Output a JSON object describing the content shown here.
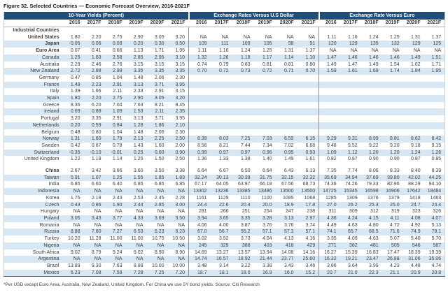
{
  "title": "Figure 32. Selected Countries — Economic Forecast Overview, 2016-2021F",
  "footnote": "*Per USD except Euro Area, Australia, New Zealand, United Kingdom. For China we use 5Y bond yields. Source: Citi Research",
  "colors": {
    "header_bg": "#1F4E79",
    "stripe": "#D7E7F3",
    "text": "#404040"
  },
  "table": {
    "groups": [
      {
        "label": "10-Year Yields (Percent)"
      },
      {
        "label": "Exchange Rates Versus U.S Dollar"
      },
      {
        "label": "Exchange Rate Versus Euro"
      }
    ],
    "years": [
      "2016",
      "2017F",
      "2018F",
      "2019F",
      "2020F",
      "2021F"
    ],
    "rows": [
      {
        "type": "section",
        "name": "Industrial Countries"
      },
      {
        "type": "data",
        "name": "United States",
        "bold": true,
        "yields": [
          "1.80",
          "2.20",
          "2.75",
          "2.90",
          "3.05",
          "3.20"
        ],
        "usd": [
          "NA",
          "NA",
          "NA",
          "NA",
          "NA",
          "NA"
        ],
        "eur": [
          "1.11",
          "1.16",
          "1.24",
          "1.25",
          "1.31",
          "1.37"
        ]
      },
      {
        "type": "data",
        "name": "Japan",
        "bold": true,
        "yields": [
          "-0.05",
          "0.06",
          "0.09",
          "0.20",
          "0.30",
          "0.50"
        ],
        "usd": [
          "109",
          "111",
          "109",
          "105",
          "98",
          "91"
        ],
        "eur": [
          "120",
          "129",
          "135",
          "132",
          "129",
          "125"
        ]
      },
      {
        "type": "data",
        "name": "Euro Area",
        "bold": true,
        "yields": [
          "0.07",
          "0.41",
          "0.66",
          "1.13",
          "1.71",
          "1.95"
        ],
        "usd": [
          "1.11",
          "1.16",
          "1.24",
          "1.25",
          "1.31",
          "1.37"
        ],
        "eur": [
          "NA",
          "NA",
          "NA",
          "NA",
          "NA",
          "NA"
        ]
      },
      {
        "type": "data",
        "name": "Canada",
        "yields": [
          "1.25",
          "1.83",
          "2.58",
          "2.85",
          "2.95",
          "3.10"
        ],
        "usd": [
          "1.32",
          "1.26",
          "1.18",
          "1.17",
          "1.14",
          "1.10"
        ],
        "eur": [
          "1.47",
          "1.46",
          "1.46",
          "1.46",
          "1.49",
          "1.51"
        ]
      },
      {
        "type": "data",
        "name": "Australia",
        "yields": [
          "2.29",
          "2.46",
          "2.76",
          "3.15",
          "3.15",
          "3.15"
        ],
        "usd": [
          "0.74",
          "0.79",
          "0.83",
          "0.81",
          "0.81",
          "0.80"
        ],
        "eur": [
          "1.49",
          "1.47",
          "1.49",
          "1.54",
          "1.62",
          "1.71"
        ]
      },
      {
        "type": "data",
        "name": "New Zealand",
        "yields": [
          "2.72",
          "2.88",
          "2.99",
          "3.35",
          "3.35",
          "3.35"
        ],
        "usd": [
          "0.70",
          "0.72",
          "0.73",
          "0.72",
          "0.71",
          "0.70"
        ],
        "eur": [
          "1.59",
          "1.61",
          "1.69",
          "1.74",
          "1.84",
          "1.95"
        ]
      },
      {
        "type": "data",
        "name": "Germany",
        "yields": [
          "0.47",
          "0.85",
          "1.04",
          "1.48",
          "2.06",
          "2.30"
        ],
        "usd": [
          "",
          "",
          "",
          "",
          "",
          ""
        ],
        "eur": [
          "",
          "",
          "",
          "",
          "",
          ""
        ]
      },
      {
        "type": "data",
        "name": "France",
        "yields": [
          "1.49",
          "2.23",
          "2.91",
          "3.13",
          "3.71",
          "3.95"
        ],
        "usd": [
          "",
          "",
          "",
          "",
          "",
          ""
        ],
        "eur": [
          "",
          "",
          "",
          "",
          "",
          ""
        ]
      },
      {
        "type": "data",
        "name": "Italy",
        "yields": [
          "1.39",
          "1.66",
          "2.11",
          "2.33",
          "2.91",
          "3.15"
        ],
        "usd": [
          "",
          "",
          "",
          "",
          "",
          ""
        ],
        "eur": [
          "",
          "",
          "",
          "",
          "",
          ""
        ]
      },
      {
        "type": "data",
        "name": "Spain",
        "yields": [
          "1.80",
          "2.20",
          "2.75",
          "2.90",
          "3.05",
          "3.20"
        ],
        "usd": [
          "",
          "",
          "",
          "",
          "",
          ""
        ],
        "eur": [
          "",
          "",
          "",
          "",
          "",
          ""
        ]
      },
      {
        "type": "data",
        "name": "Greece",
        "yields": [
          "8.36",
          "6.20",
          "7.04",
          "7.63",
          "8.21",
          "8.45"
        ],
        "usd": [
          "",
          "",
          "",
          "",
          "",
          ""
        ],
        "eur": [
          "",
          "",
          "",
          "",
          "",
          ""
        ]
      },
      {
        "type": "data",
        "name": "Ireland",
        "yields": [
          "0.69",
          "0.88",
          "1.09",
          "1.53",
          "2.11",
          "2.35"
        ],
        "usd": [
          "",
          "",
          "",
          "",
          "",
          ""
        ],
        "eur": [
          "",
          "",
          "",
          "",
          "",
          ""
        ]
      },
      {
        "type": "data",
        "name": "Portugal",
        "yields": [
          "3.20",
          "3.35",
          "2.91",
          "3.13",
          "3.71",
          "3.95"
        ],
        "usd": [
          "",
          "",
          "",
          "",
          "",
          ""
        ],
        "eur": [
          "",
          "",
          "",
          "",
          "",
          ""
        ]
      },
      {
        "type": "data",
        "name": "Netherlands",
        "yields": [
          "0.20",
          "0.59",
          "0.84",
          "1.28",
          "1.86",
          "2.10"
        ],
        "usd": [
          "",
          "",
          "",
          "",
          "",
          ""
        ],
        "eur": [
          "",
          "",
          "",
          "",
          "",
          ""
        ]
      },
      {
        "type": "data",
        "name": "Belgium",
        "yields": [
          "0.48",
          "0.80",
          "1.04",
          "1.48",
          "2.06",
          "2.30"
        ],
        "usd": [
          "",
          "",
          "",
          "",
          "",
          ""
        ],
        "eur": [
          "",
          "",
          "",
          "",
          "",
          ""
        ]
      },
      {
        "type": "data",
        "name": "Norway",
        "yields": [
          "1.31",
          "1.60",
          "1.79",
          "2.13",
          "2.25",
          "2.50"
        ],
        "usd": [
          "8.39",
          "8.03",
          "7.25",
          "7.03",
          "6.59",
          "6.15"
        ],
        "eur": [
          "9.29",
          "9.31",
          "8.99",
          "8.81",
          "8.62",
          "8.42"
        ]
      },
      {
        "type": "data",
        "name": "Sweden",
        "yields": [
          "0.42",
          "0.67",
          "0.78",
          "1.43",
          "1.60",
          "2.00"
        ],
        "usd": [
          "8.56",
          "8.21",
          "7.44",
          "7.34",
          "7.02",
          "6.68"
        ],
        "eur": [
          "9.48",
          "9.52",
          "9.22",
          "9.20",
          "9.18",
          "9.15"
        ]
      },
      {
        "type": "data",
        "name": "Switzerland",
        "yields": [
          "-0.35",
          "-0.10",
          "-0.01",
          "0.25",
          "0.60",
          "0.90"
        ],
        "usd": [
          "0.99",
          "0.97",
          "0.97",
          "0.96",
          "0.95",
          "0.93"
        ],
        "eur": [
          "1.09",
          "1.12",
          "1.20",
          "1.20",
          "1.24",
          "1.28"
        ]
      },
      {
        "type": "data",
        "name": "United Kingdom",
        "yields": [
          "1.22",
          "1.19",
          "1.14",
          "1.25",
          "1.50",
          "2.50"
        ],
        "usd": [
          "1.36",
          "1.33",
          "1.38",
          "1.40",
          "1.49",
          "1.61"
        ],
        "eur": [
          "0.82",
          "0.87",
          "0.90",
          "0.90",
          "0.87",
          "0.85"
        ]
      },
      {
        "type": "spacer"
      },
      {
        "type": "data",
        "name": "China",
        "bold": true,
        "yields": [
          "2.67",
          "3.42",
          "3.66",
          "3.60",
          "3.50",
          "3.38"
        ],
        "usd": [
          "6.64",
          "6.67",
          "6.50",
          "6.64",
          "6.43",
          "6.13"
        ],
        "eur": [
          "7.35",
          "7.74",
          "8.06",
          "8.33",
          "8.40",
          "8.39"
        ]
      },
      {
        "type": "data",
        "name": "Taiwan",
        "yields": [
          "0.91",
          "1.07",
          "1.25",
          "1.55",
          "1.85",
          "1.83"
        ],
        "usd": [
          "32.24",
          "30.13",
          "30.39",
          "31.75",
          "32.15",
          "32.32"
        ],
        "eur": [
          "35.69",
          "34.94",
          "37.69",
          "39.80",
          "42.02",
          "44.25"
        ]
      },
      {
        "type": "data",
        "name": "India",
        "yields": [
          "6.85",
          "6.60",
          "6.40",
          "6.85",
          "6.85",
          "6.85"
        ],
        "usd": [
          "67.17",
          "64.05",
          "63.97",
          "66.18",
          "67.56",
          "68.73"
        ],
        "eur": [
          "74.36",
          "74.26",
          "79.33",
          "82.96",
          "88.29",
          "94.10"
        ]
      },
      {
        "type": "data",
        "name": "Indonesia",
        "yields": [
          "NA",
          "NA",
          "NA",
          "NA",
          "NA",
          "NA"
        ],
        "usd": [
          "13302",
          "13236",
          "13385",
          "13486",
          "13500",
          "13500"
        ],
        "eur": [
          "14725",
          "15345",
          "16598",
          "16906",
          "17642",
          "18484"
        ]
      },
      {
        "type": "data",
        "name": "Korea",
        "yields": [
          "1.75",
          "2.19",
          "2.43",
          "2.53",
          "2.45",
          "2.28"
        ],
        "usd": [
          "1161",
          "1129",
          "1110",
          "1100",
          "1085",
          "1068"
        ],
        "eur": [
          "1285",
          "1309",
          "1376",
          "1379",
          "1418",
          "1463"
        ]
      },
      {
        "type": "data",
        "name": "Czech",
        "yields": [
          "0.43",
          "0.86",
          "1.90",
          "2.44",
          "2.85",
          "3.00"
        ],
        "usd": [
          "24.4",
          "22.6",
          "20.4",
          "20.0",
          "18.9",
          "17.8"
        ],
        "eur": [
          "27.0",
          "26.2",
          "25.3",
          "25.0",
          "24.7",
          "24.4"
        ]
      },
      {
        "type": "data",
        "name": "Hungary",
        "yields": [
          "NA",
          "NA",
          "NA",
          "NA",
          "NA",
          "NA"
        ],
        "usd": [
          "281",
          "266",
          "251",
          "254",
          "247",
          "238"
        ],
        "eur": [
          "311",
          "309",
          "312",
          "319",
          "323",
          "326"
        ]
      },
      {
        "type": "data",
        "name": "Poland",
        "yields": [
          "3.05",
          "3.43",
          "3.77",
          "4.33",
          "3.69",
          "3.50"
        ],
        "usd": [
          "3.94",
          "3.65",
          "3.35",
          "3.28",
          "3.13",
          "2.97"
        ],
        "eur": [
          "4.36",
          "4.24",
          "4.15",
          "4.11",
          "4.08",
          "4.07"
        ]
      },
      {
        "type": "data",
        "name": "Romania",
        "yields": [
          "NA",
          "NA",
          "NA",
          "NA",
          "NA",
          "NA"
        ],
        "usd": [
          "4.06",
          "4.00",
          "3.87",
          "3.76",
          "3.76",
          "3.74"
        ],
        "eur": [
          "4.49",
          "4.63",
          "4.80",
          "4.72",
          "4.92",
          "5.13"
        ]
      },
      {
        "type": "data",
        "name": "Russia",
        "yields": [
          "8.88",
          "7.80",
          "7.27",
          "6.53",
          "6.23",
          "6.23"
        ],
        "usd": [
          "67.0",
          "56.7",
          "55.2",
          "57.1",
          "57.3",
          "57.1"
        ],
        "eur": [
          "74.1",
          "65.7",
          "68.5",
          "71.6",
          "74.9",
          "78.1"
        ]
      },
      {
        "type": "data",
        "name": "Turkey",
        "yields": [
          "10.20",
          "11.28",
          "11.00",
          "11.00",
          "10.75",
          "10.50"
        ],
        "usd": [
          "3.02",
          "3.52",
          "3.73",
          "4.04",
          "4.13",
          "4.16"
        ],
        "eur": [
          "3.35",
          "4.09",
          "4.63",
          "5.07",
          "5.40",
          "5.70"
        ]
      },
      {
        "type": "data",
        "name": "Nigeria",
        "yields": [
          "NA",
          "NA",
          "NA",
          "NA",
          "NA",
          "NA"
        ],
        "usd": [
          "245",
          "329",
          "388",
          "403",
          "418",
          "429"
        ],
        "eur": [
          "271",
          "382",
          "481",
          "505",
          "546",
          "587"
        ]
      },
      {
        "type": "data",
        "name": "South Africa",
        "yields": [
          "9.02",
          "8.79",
          "9.24",
          "9.02",
          "8.90",
          "8.90"
        ],
        "usd": [
          "14.69",
          "13.27",
          "13.57",
          "13.94",
          "14.08",
          "14.16"
        ],
        "eur": [
          "16.27",
          "15.39",
          "16.83",
          "17.47",
          "18.39",
          "19.39"
        ]
      },
      {
        "type": "data",
        "name": "Argentina",
        "yields": [
          "NA",
          "NA",
          "NA",
          "NA",
          "NA",
          "NA"
        ],
        "usd": [
          "14.74",
          "16.57",
          "18.92",
          "21.44",
          "23.77",
          "25.60"
        ],
        "eur": [
          "16.32",
          "19.21",
          "23.47",
          "26.88",
          "31.06",
          "35.06"
        ]
      },
      {
        "type": "data",
        "name": "Brazil",
        "yields": [
          "13.89",
          "9.30",
          "7.63",
          "8.88",
          "10.00",
          "10.00"
        ],
        "usd": [
          "3.48",
          "3.14",
          "3.22",
          "3.38",
          "3.43",
          "3.46"
        ],
        "eur": [
          "3.86",
          "3.64",
          "3.99",
          "4.23",
          "4.48",
          "4.74"
        ]
      },
      {
        "type": "data",
        "name": "Mexico",
        "yields": [
          "6.23",
          "7.08",
          "7.59",
          "7.28",
          "7.25",
          "7.20"
        ],
        "usd": [
          "18.7",
          "18.1",
          "18.0",
          "16.9",
          "16.0",
          "15.2"
        ],
        "eur": [
          "20.7",
          "21.0",
          "22.3",
          "21.1",
          "20.9",
          "20.8"
        ]
      }
    ]
  }
}
